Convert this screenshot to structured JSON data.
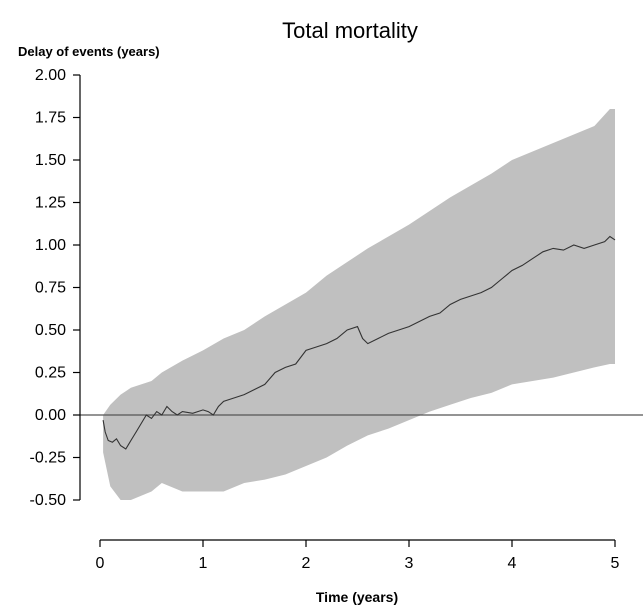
{
  "chart_data": {
    "type": "line",
    "title": "Total mortality",
    "ylabel": "Delay of events (years)",
    "xlabel": "Time (years)",
    "xlim": [
      0,
      5
    ],
    "ylim": [
      -0.5,
      2.0
    ],
    "xticks": [
      "0",
      "1",
      "2",
      "3",
      "4",
      "5"
    ],
    "yticks": [
      "2.00",
      "1.75",
      "1.50",
      "1.25",
      "1.00",
      "0.75",
      "0.50",
      "0.25",
      "0.00",
      "-0.25",
      "-0.50"
    ],
    "reference_line_y": 0.0,
    "grid": false,
    "legend": "none",
    "colors": {
      "line": "#333333",
      "band": "#c0c0c0",
      "reference": "#555555"
    },
    "series": [
      {
        "x": [
          0.03,
          0.05,
          0.08,
          0.12,
          0.16,
          0.2,
          0.25,
          0.3,
          0.35,
          0.4,
          0.45,
          0.5,
          0.55,
          0.6,
          0.65,
          0.7,
          0.75,
          0.8,
          0.9,
          1.0,
          1.05,
          1.1,
          1.15,
          1.2,
          1.3,
          1.4,
          1.5,
          1.6,
          1.7,
          1.8,
          1.9,
          2.0,
          2.1,
          2.2,
          2.3,
          2.4,
          2.5,
          2.55,
          2.6,
          2.7,
          2.8,
          2.9,
          3.0,
          3.1,
          3.2,
          3.3,
          3.4,
          3.5,
          3.6,
          3.7,
          3.8,
          3.9,
          4.0,
          4.1,
          4.2,
          4.3,
          4.4,
          4.5,
          4.6,
          4.7,
          4.8,
          4.9,
          4.95,
          5.0
        ],
        "y": [
          -0.03,
          -0.1,
          -0.15,
          -0.16,
          -0.14,
          -0.18,
          -0.2,
          -0.15,
          -0.1,
          -0.05,
          0.0,
          -0.02,
          0.02,
          0.0,
          0.05,
          0.02,
          0.0,
          0.02,
          0.01,
          0.03,
          0.02,
          0.0,
          0.05,
          0.08,
          0.1,
          0.12,
          0.15,
          0.18,
          0.25,
          0.28,
          0.3,
          0.38,
          0.4,
          0.42,
          0.45,
          0.5,
          0.52,
          0.45,
          0.42,
          0.45,
          0.48,
          0.5,
          0.52,
          0.55,
          0.58,
          0.6,
          0.65,
          0.68,
          0.7,
          0.72,
          0.75,
          0.8,
          0.85,
          0.88,
          0.92,
          0.96,
          0.98,
          0.97,
          1.0,
          0.98,
          1.0,
          1.02,
          1.05,
          1.03
        ]
      }
    ],
    "band": {
      "x": [
        0.03,
        0.1,
        0.2,
        0.3,
        0.5,
        0.6,
        0.8,
        1.0,
        1.2,
        1.4,
        1.6,
        1.8,
        2.0,
        2.2,
        2.4,
        2.6,
        2.8,
        3.0,
        3.2,
        3.4,
        3.6,
        3.8,
        4.0,
        4.2,
        4.4,
        4.6,
        4.8,
        4.95,
        5.0
      ],
      "upper": [
        0.0,
        0.06,
        0.12,
        0.16,
        0.2,
        0.25,
        0.32,
        0.38,
        0.45,
        0.5,
        0.58,
        0.65,
        0.72,
        0.82,
        0.9,
        0.98,
        1.05,
        1.12,
        1.2,
        1.28,
        1.35,
        1.42,
        1.5,
        1.55,
        1.6,
        1.65,
        1.7,
        1.8,
        1.8
      ],
      "lower": [
        -0.22,
        -0.42,
        -0.5,
        -0.5,
        -0.45,
        -0.4,
        -0.45,
        -0.45,
        -0.45,
        -0.4,
        -0.38,
        -0.35,
        -0.3,
        -0.25,
        -0.18,
        -0.12,
        -0.08,
        -0.03,
        0.02,
        0.06,
        0.1,
        0.13,
        0.18,
        0.2,
        0.22,
        0.25,
        0.28,
        0.3,
        0.3
      ]
    }
  }
}
